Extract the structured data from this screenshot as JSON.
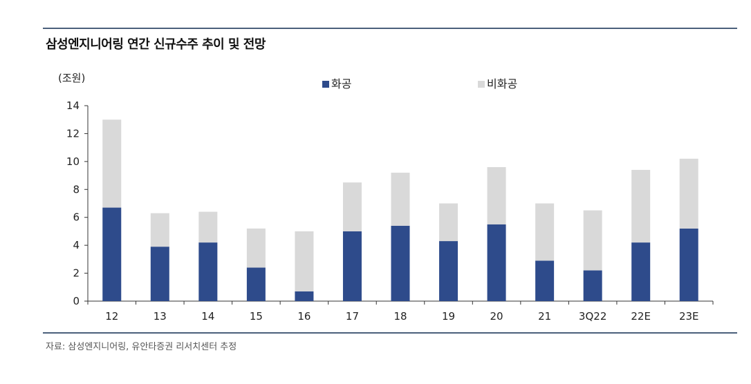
{
  "title": "삼성엔지니어링 연간 신규수주 추이 및 전망",
  "source": "자료: 삼성엔지니어링, 유안타증권 리서치센터 추정",
  "colors": {
    "series_1": "#2e4b8b",
    "series_2": "#d9d9d9",
    "rule": "#4a5f7a"
  },
  "chart_data": {
    "type": "bar",
    "stacked": true,
    "unit_label": "(조원)",
    "categories": [
      "12",
      "13",
      "14",
      "15",
      "16",
      "17",
      "18",
      "19",
      "20",
      "21",
      "3Q22",
      "22E",
      "23E"
    ],
    "series": [
      {
        "name": "화공",
        "color": "#2e4b8b",
        "values": [
          6.7,
          3.9,
          4.2,
          2.4,
          0.7,
          5.0,
          5.4,
          4.3,
          5.5,
          2.9,
          2.2,
          4.2,
          5.2
        ]
      },
      {
        "name": "비화공",
        "color": "#d9d9d9",
        "values": [
          6.3,
          2.4,
          2.2,
          2.8,
          4.3,
          3.5,
          3.8,
          2.7,
          4.1,
          4.1,
          4.3,
          5.2,
          5.0
        ]
      }
    ],
    "ylim": [
      0,
      14
    ],
    "yticks": [
      0,
      2,
      4,
      6,
      8,
      10,
      12,
      14
    ],
    "grid": false,
    "legend_position": "top"
  }
}
